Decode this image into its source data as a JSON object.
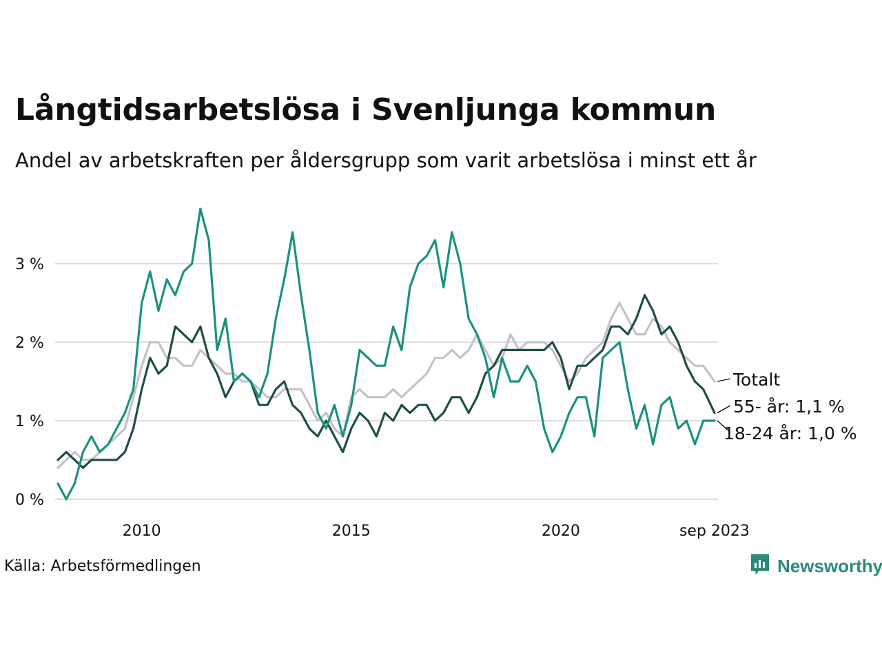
{
  "title": "Långtidsarbetslösa i Svenljunga kommun",
  "subtitle": "Andel av arbetskraften per åldersgrupp som varit arbetslösa i minst ett år",
  "source": "Källa: Arbetsförmedlingen",
  "brand": {
    "name": "Newsworthy",
    "icon": "newsworthy-logo-icon",
    "color": "#2b8a7a"
  },
  "chart_data": {
    "type": "line",
    "title": "Långtidsarbetslösa i Svenljunga kommun",
    "xlabel": "",
    "ylabel": "",
    "xlim": [
      2008.0,
      2023.75
    ],
    "ylim": [
      0,
      3.8
    ],
    "y_ticks": [
      0,
      1,
      2,
      3
    ],
    "y_tick_labels": [
      "0 %",
      "1 %",
      "2 %",
      "3 %"
    ],
    "x_ticks": [
      2010,
      2015,
      2020,
      2023.667
    ],
    "x_tick_labels": [
      "2010",
      "2015",
      "2020",
      "sep 2023"
    ],
    "grid": "horizontal",
    "series": [
      {
        "name": "Totalt",
        "label": "Totalt",
        "color": "#c4c0cc",
        "points": [
          [
            2008.0,
            0.4
          ],
          [
            2008.2,
            0.5
          ],
          [
            2008.4,
            0.6
          ],
          [
            2008.6,
            0.5
          ],
          [
            2008.8,
            0.5
          ],
          [
            2009.0,
            0.6
          ],
          [
            2009.2,
            0.7
          ],
          [
            2009.4,
            0.8
          ],
          [
            2009.6,
            0.9
          ],
          [
            2009.8,
            1.3
          ],
          [
            2010.0,
            1.7
          ],
          [
            2010.2,
            2.0
          ],
          [
            2010.4,
            2.0
          ],
          [
            2010.6,
            1.8
          ],
          [
            2010.8,
            1.8
          ],
          [
            2011.0,
            1.7
          ],
          [
            2011.2,
            1.7
          ],
          [
            2011.4,
            1.9
          ],
          [
            2011.6,
            1.8
          ],
          [
            2011.8,
            1.7
          ],
          [
            2012.0,
            1.6
          ],
          [
            2012.2,
            1.6
          ],
          [
            2012.4,
            1.5
          ],
          [
            2012.6,
            1.5
          ],
          [
            2012.8,
            1.4
          ],
          [
            2013.0,
            1.3
          ],
          [
            2013.2,
            1.3
          ],
          [
            2013.4,
            1.4
          ],
          [
            2013.6,
            1.4
          ],
          [
            2013.8,
            1.4
          ],
          [
            2014.0,
            1.2
          ],
          [
            2014.2,
            1.0
          ],
          [
            2014.4,
            1.1
          ],
          [
            2014.6,
            0.9
          ],
          [
            2014.8,
            0.8
          ],
          [
            2015.0,
            1.3
          ],
          [
            2015.2,
            1.4
          ],
          [
            2015.4,
            1.3
          ],
          [
            2015.6,
            1.3
          ],
          [
            2015.8,
            1.3
          ],
          [
            2016.0,
            1.4
          ],
          [
            2016.2,
            1.3
          ],
          [
            2016.4,
            1.4
          ],
          [
            2016.6,
            1.5
          ],
          [
            2016.8,
            1.6
          ],
          [
            2017.0,
            1.8
          ],
          [
            2017.2,
            1.8
          ],
          [
            2017.4,
            1.9
          ],
          [
            2017.6,
            1.8
          ],
          [
            2017.8,
            1.9
          ],
          [
            2018.0,
            2.1
          ],
          [
            2018.2,
            1.9
          ],
          [
            2018.4,
            1.7
          ],
          [
            2018.6,
            1.8
          ],
          [
            2018.8,
            2.1
          ],
          [
            2019.0,
            1.9
          ],
          [
            2019.2,
            2.0
          ],
          [
            2019.4,
            2.0
          ],
          [
            2019.6,
            2.0
          ],
          [
            2019.8,
            1.9
          ],
          [
            2020.0,
            1.7
          ],
          [
            2020.2,
            1.5
          ],
          [
            2020.4,
            1.6
          ],
          [
            2020.6,
            1.8
          ],
          [
            2020.8,
            1.9
          ],
          [
            2021.0,
            2.0
          ],
          [
            2021.2,
            2.3
          ],
          [
            2021.4,
            2.5
          ],
          [
            2021.6,
            2.3
          ],
          [
            2021.8,
            2.1
          ],
          [
            2022.0,
            2.1
          ],
          [
            2022.2,
            2.3
          ],
          [
            2022.4,
            2.2
          ],
          [
            2022.6,
            2.0
          ],
          [
            2022.8,
            1.9
          ],
          [
            2023.0,
            1.8
          ],
          [
            2023.2,
            1.7
          ],
          [
            2023.4,
            1.7
          ],
          [
            2023.667,
            1.5
          ]
        ]
      },
      {
        "name": "55- år",
        "label": "55- år: 1,1 %",
        "color": "#1f4d44",
        "points": [
          [
            2008.0,
            0.5
          ],
          [
            2008.2,
            0.6
          ],
          [
            2008.4,
            0.5
          ],
          [
            2008.6,
            0.4
          ],
          [
            2008.8,
            0.5
          ],
          [
            2009.0,
            0.5
          ],
          [
            2009.2,
            0.5
          ],
          [
            2009.4,
            0.5
          ],
          [
            2009.6,
            0.6
          ],
          [
            2009.8,
            0.9
          ],
          [
            2010.0,
            1.4
          ],
          [
            2010.2,
            1.8
          ],
          [
            2010.4,
            1.6
          ],
          [
            2010.6,
            1.7
          ],
          [
            2010.8,
            2.2
          ],
          [
            2011.0,
            2.1
          ],
          [
            2011.2,
            2.0
          ],
          [
            2011.4,
            2.2
          ],
          [
            2011.6,
            1.8
          ],
          [
            2011.8,
            1.6
          ],
          [
            2012.0,
            1.3
          ],
          [
            2012.2,
            1.5
          ],
          [
            2012.4,
            1.6
          ],
          [
            2012.6,
            1.5
          ],
          [
            2012.8,
            1.2
          ],
          [
            2013.0,
            1.2
          ],
          [
            2013.2,
            1.4
          ],
          [
            2013.4,
            1.5
          ],
          [
            2013.6,
            1.2
          ],
          [
            2013.8,
            1.1
          ],
          [
            2014.0,
            0.9
          ],
          [
            2014.2,
            0.8
          ],
          [
            2014.4,
            1.0
          ],
          [
            2014.6,
            0.8
          ],
          [
            2014.8,
            0.6
          ],
          [
            2015.0,
            0.9
          ],
          [
            2015.2,
            1.1
          ],
          [
            2015.4,
            1.0
          ],
          [
            2015.6,
            0.8
          ],
          [
            2015.8,
            1.1
          ],
          [
            2016.0,
            1.0
          ],
          [
            2016.2,
            1.2
          ],
          [
            2016.4,
            1.1
          ],
          [
            2016.6,
            1.2
          ],
          [
            2016.8,
            1.2
          ],
          [
            2017.0,
            1.0
          ],
          [
            2017.2,
            1.1
          ],
          [
            2017.4,
            1.3
          ],
          [
            2017.6,
            1.3
          ],
          [
            2017.8,
            1.1
          ],
          [
            2018.0,
            1.3
          ],
          [
            2018.2,
            1.6
          ],
          [
            2018.4,
            1.7
          ],
          [
            2018.6,
            1.9
          ],
          [
            2018.8,
            1.9
          ],
          [
            2019.0,
            1.9
          ],
          [
            2019.2,
            1.9
          ],
          [
            2019.4,
            1.9
          ],
          [
            2019.6,
            1.9
          ],
          [
            2019.8,
            2.0
          ],
          [
            2020.0,
            1.8
          ],
          [
            2020.2,
            1.4
          ],
          [
            2020.4,
            1.7
          ],
          [
            2020.6,
            1.7
          ],
          [
            2020.8,
            1.8
          ],
          [
            2021.0,
            1.9
          ],
          [
            2021.2,
            2.2
          ],
          [
            2021.4,
            2.2
          ],
          [
            2021.6,
            2.1
          ],
          [
            2021.8,
            2.3
          ],
          [
            2022.0,
            2.6
          ],
          [
            2022.2,
            2.4
          ],
          [
            2022.4,
            2.1
          ],
          [
            2022.6,
            2.2
          ],
          [
            2022.8,
            2.0
          ],
          [
            2023.0,
            1.7
          ],
          [
            2023.2,
            1.5
          ],
          [
            2023.4,
            1.4
          ],
          [
            2023.667,
            1.1
          ]
        ]
      },
      {
        "name": "18-24 år",
        "label": "18-24 år: 1,0 %",
        "color": "#1a9180",
        "points": [
          [
            2008.0,
            0.2
          ],
          [
            2008.2,
            0.0
          ],
          [
            2008.4,
            0.2
          ],
          [
            2008.6,
            0.6
          ],
          [
            2008.8,
            0.8
          ],
          [
            2009.0,
            0.6
          ],
          [
            2009.2,
            0.7
          ],
          [
            2009.4,
            0.9
          ],
          [
            2009.6,
            1.1
          ],
          [
            2009.8,
            1.4
          ],
          [
            2010.0,
            2.5
          ],
          [
            2010.2,
            2.9
          ],
          [
            2010.4,
            2.4
          ],
          [
            2010.6,
            2.8
          ],
          [
            2010.8,
            2.6
          ],
          [
            2011.0,
            2.9
          ],
          [
            2011.2,
            3.0
          ],
          [
            2011.4,
            3.7
          ],
          [
            2011.6,
            3.3
          ],
          [
            2011.8,
            1.9
          ],
          [
            2012.0,
            2.3
          ],
          [
            2012.2,
            1.5
          ],
          [
            2012.4,
            1.6
          ],
          [
            2012.6,
            1.5
          ],
          [
            2012.8,
            1.3
          ],
          [
            2013.0,
            1.6
          ],
          [
            2013.2,
            2.3
          ],
          [
            2013.4,
            2.8
          ],
          [
            2013.6,
            3.4
          ],
          [
            2013.8,
            2.6
          ],
          [
            2014.0,
            1.9
          ],
          [
            2014.2,
            1.1
          ],
          [
            2014.4,
            0.9
          ],
          [
            2014.6,
            1.2
          ],
          [
            2014.8,
            0.8
          ],
          [
            2015.0,
            1.2
          ],
          [
            2015.2,
            1.9
          ],
          [
            2015.4,
            1.8
          ],
          [
            2015.6,
            1.7
          ],
          [
            2015.8,
            1.7
          ],
          [
            2016.0,
            2.2
          ],
          [
            2016.2,
            1.9
          ],
          [
            2016.4,
            2.7
          ],
          [
            2016.6,
            3.0
          ],
          [
            2016.8,
            3.1
          ],
          [
            2017.0,
            3.3
          ],
          [
            2017.2,
            2.7
          ],
          [
            2017.4,
            3.4
          ],
          [
            2017.6,
            3.0
          ],
          [
            2017.8,
            2.3
          ],
          [
            2018.0,
            2.1
          ],
          [
            2018.2,
            1.8
          ],
          [
            2018.4,
            1.3
          ],
          [
            2018.6,
            1.8
          ],
          [
            2018.8,
            1.5
          ],
          [
            2019.0,
            1.5
          ],
          [
            2019.2,
            1.7
          ],
          [
            2019.4,
            1.5
          ],
          [
            2019.6,
            0.9
          ],
          [
            2019.8,
            0.6
          ],
          [
            2020.0,
            0.8
          ],
          [
            2020.2,
            1.1
          ],
          [
            2020.4,
            1.3
          ],
          [
            2020.6,
            1.3
          ],
          [
            2020.8,
            0.8
          ],
          [
            2021.0,
            1.8
          ],
          [
            2021.2,
            1.9
          ],
          [
            2021.4,
            2.0
          ],
          [
            2021.6,
            1.4
          ],
          [
            2021.8,
            0.9
          ],
          [
            2022.0,
            1.2
          ],
          [
            2022.2,
            0.7
          ],
          [
            2022.4,
            1.2
          ],
          [
            2022.6,
            1.3
          ],
          [
            2022.8,
            0.9
          ],
          [
            2023.0,
            1.0
          ],
          [
            2023.2,
            0.7
          ],
          [
            2023.4,
            1.0
          ],
          [
            2023.667,
            1.0
          ]
        ]
      }
    ]
  }
}
